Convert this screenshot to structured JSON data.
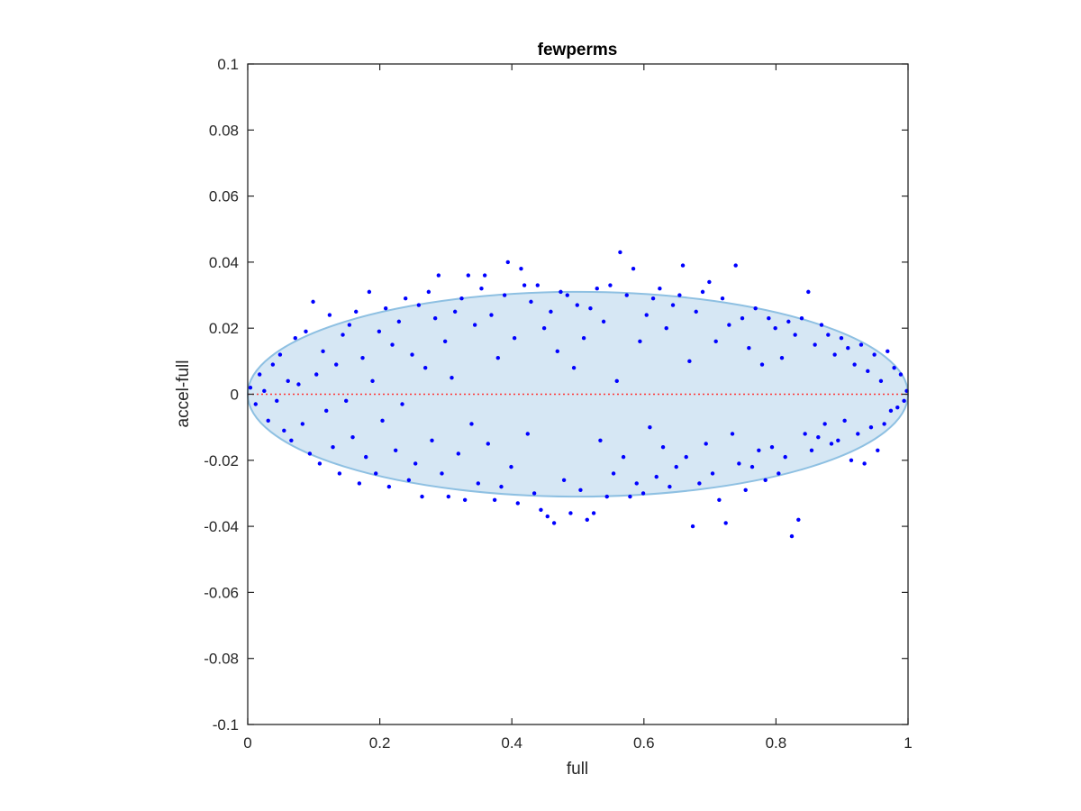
{
  "chart_data": {
    "type": "scatter",
    "title": "fewperms",
    "xlabel": "full",
    "ylabel": "accel-full",
    "xlim": [
      0,
      1
    ],
    "ylim": [
      -0.1,
      0.1
    ],
    "xticks": [
      0,
      0.2,
      0.4,
      0.6,
      0.8,
      1
    ],
    "xtick_labels": [
      "0",
      "0.2",
      "0.4",
      "0.6",
      "0.8",
      "1"
    ],
    "yticks": [
      -0.1,
      -0.08,
      -0.06,
      -0.04,
      -0.02,
      0,
      0.02,
      0.04,
      0.06,
      0.08,
      0.1
    ],
    "ytick_labels": [
      "-0.1",
      "-0.08",
      "-0.06",
      "-0.04",
      "-0.02",
      "0",
      "0.02",
      "0.04",
      "0.06",
      "0.08",
      "0.1"
    ],
    "grid": false,
    "colors": {
      "points": "#0000ff",
      "ellipse_fill": "#d6e7f4",
      "ellipse_edge": "#8ec0e2",
      "reference_line": "#ff3333"
    },
    "reference_line": {
      "y": 0,
      "style": "dotted"
    },
    "ellipse": {
      "cx": 0.5,
      "cy": 0,
      "rx": 0.5,
      "ry": 0.031
    },
    "series": [
      {
        "values": [
          [
            0.004,
            0.002
          ],
          [
            0.012,
            -0.003
          ],
          [
            0.018,
            0.006
          ],
          [
            0.025,
            0.001
          ],
          [
            0.031,
            -0.008
          ],
          [
            0.038,
            0.009
          ],
          [
            0.044,
            -0.002
          ],
          [
            0.049,
            0.012
          ],
          [
            0.055,
            -0.011
          ],
          [
            0.061,
            0.004
          ],
          [
            0.066,
            -0.014
          ],
          [
            0.072,
            0.017
          ],
          [
            0.077,
            0.003
          ],
          [
            0.083,
            -0.009
          ],
          [
            0.088,
            0.019
          ],
          [
            0.094,
            -0.018
          ],
          [
            0.099,
            0.028
          ],
          [
            0.104,
            0.006
          ],
          [
            0.109,
            -0.021
          ],
          [
            0.114,
            0.013
          ],
          [
            0.119,
            -0.005
          ],
          [
            0.124,
            0.024
          ],
          [
            0.129,
            -0.016
          ],
          [
            0.134,
            0.009
          ],
          [
            0.139,
            -0.024
          ],
          [
            0.144,
            0.018
          ],
          [
            0.149,
            -0.002
          ],
          [
            0.154,
            0.021
          ],
          [
            0.159,
            -0.013
          ],
          [
            0.164,
            0.025
          ],
          [
            0.169,
            -0.027
          ],
          [
            0.174,
            0.011
          ],
          [
            0.179,
            -0.019
          ],
          [
            0.184,
            0.031
          ],
          [
            0.189,
            0.004
          ],
          [
            0.194,
            -0.024
          ],
          [
            0.199,
            0.019
          ],
          [
            0.204,
            -0.008
          ],
          [
            0.209,
            0.026
          ],
          [
            0.214,
            -0.028
          ],
          [
            0.219,
            0.015
          ],
          [
            0.224,
            -0.017
          ],
          [
            0.229,
            0.022
          ],
          [
            0.234,
            -0.003
          ],
          [
            0.239,
            0.029
          ],
          [
            0.244,
            -0.026
          ],
          [
            0.249,
            0.012
          ],
          [
            0.254,
            -0.021
          ],
          [
            0.259,
            0.027
          ],
          [
            0.264,
            -0.031
          ],
          [
            0.269,
            0.008
          ],
          [
            0.274,
            0.031
          ],
          [
            0.279,
            -0.014
          ],
          [
            0.284,
            0.023
          ],
          [
            0.289,
            0.036
          ],
          [
            0.294,
            -0.024
          ],
          [
            0.299,
            0.016
          ],
          [
            0.304,
            -0.031
          ],
          [
            0.309,
            0.005
          ],
          [
            0.314,
            0.025
          ],
          [
            0.319,
            -0.018
          ],
          [
            0.324,
            0.029
          ],
          [
            0.329,
            -0.032
          ],
          [
            0.334,
            0.036
          ],
          [
            0.339,
            -0.009
          ],
          [
            0.344,
            0.021
          ],
          [
            0.349,
            -0.027
          ],
          [
            0.354,
            0.032
          ],
          [
            0.359,
            0.036
          ],
          [
            0.364,
            -0.015
          ],
          [
            0.369,
            0.024
          ],
          [
            0.374,
            -0.032
          ],
          [
            0.379,
            0.011
          ],
          [
            0.384,
            -0.028
          ],
          [
            0.389,
            0.03
          ],
          [
            0.394,
            0.04
          ],
          [
            0.399,
            -0.022
          ],
          [
            0.404,
            0.017
          ],
          [
            0.409,
            -0.033
          ],
          [
            0.414,
            0.038
          ],
          [
            0.419,
            0.033
          ],
          [
            0.424,
            -0.012
          ],
          [
            0.429,
            0.028
          ],
          [
            0.434,
            -0.03
          ],
          [
            0.439,
            0.033
          ],
          [
            0.444,
            -0.035
          ],
          [
            0.449,
            0.02
          ],
          [
            0.454,
            -0.037
          ],
          [
            0.459,
            0.025
          ],
          [
            0.464,
            -0.039
          ],
          [
            0.469,
            0.013
          ],
          [
            0.474,
            0.031
          ],
          [
            0.479,
            -0.026
          ],
          [
            0.484,
            0.03
          ],
          [
            0.489,
            -0.036
          ],
          [
            0.494,
            0.008
          ],
          [
            0.499,
            0.027
          ],
          [
            0.504,
            -0.029
          ],
          [
            0.509,
            0.017
          ],
          [
            0.514,
            -0.038
          ],
          [
            0.519,
            0.026
          ],
          [
            0.524,
            -0.036
          ],
          [
            0.529,
            0.032
          ],
          [
            0.534,
            -0.014
          ],
          [
            0.539,
            0.022
          ],
          [
            0.544,
            -0.031
          ],
          [
            0.549,
            0.033
          ],
          [
            0.554,
            -0.024
          ],
          [
            0.559,
            0.004
          ],
          [
            0.564,
            0.043
          ],
          [
            0.569,
            -0.019
          ],
          [
            0.574,
            0.03
          ],
          [
            0.579,
            -0.031
          ],
          [
            0.584,
            0.038
          ],
          [
            0.589,
            -0.027
          ],
          [
            0.594,
            0.016
          ],
          [
            0.599,
            -0.03
          ],
          [
            0.604,
            0.024
          ],
          [
            0.609,
            -0.01
          ],
          [
            0.614,
            0.029
          ],
          [
            0.619,
            -0.025
          ],
          [
            0.624,
            0.032
          ],
          [
            0.629,
            -0.016
          ],
          [
            0.634,
            0.02
          ],
          [
            0.639,
            -0.028
          ],
          [
            0.644,
            0.027
          ],
          [
            0.649,
            -0.022
          ],
          [
            0.654,
            0.03
          ],
          [
            0.659,
            0.039
          ],
          [
            0.664,
            -0.019
          ],
          [
            0.669,
            0.01
          ],
          [
            0.674,
            -0.04
          ],
          [
            0.679,
            0.025
          ],
          [
            0.684,
            -0.027
          ],
          [
            0.689,
            0.031
          ],
          [
            0.694,
            -0.015
          ],
          [
            0.699,
            0.034
          ],
          [
            0.704,
            -0.024
          ],
          [
            0.709,
            0.016
          ],
          [
            0.714,
            -0.032
          ],
          [
            0.719,
            0.029
          ],
          [
            0.724,
            -0.039
          ],
          [
            0.729,
            0.021
          ],
          [
            0.734,
            -0.012
          ],
          [
            0.739,
            0.039
          ],
          [
            0.744,
            -0.021
          ],
          [
            0.749,
            0.023
          ],
          [
            0.754,
            -0.029
          ],
          [
            0.759,
            0.014
          ],
          [
            0.764,
            -0.022
          ],
          [
            0.769,
            0.026
          ],
          [
            0.774,
            -0.017
          ],
          [
            0.779,
            0.009
          ],
          [
            0.784,
            -0.026
          ],
          [
            0.789,
            0.023
          ],
          [
            0.794,
            -0.016
          ],
          [
            0.799,
            0.02
          ],
          [
            0.804,
            -0.024
          ],
          [
            0.809,
            0.011
          ],
          [
            0.814,
            -0.019
          ],
          [
            0.819,
            0.022
          ],
          [
            0.824,
            -0.043
          ],
          [
            0.829,
            0.018
          ],
          [
            0.834,
            -0.038
          ],
          [
            0.839,
            0.023
          ],
          [
            0.844,
            -0.012
          ],
          [
            0.849,
            0.031
          ],
          [
            0.854,
            -0.017
          ],
          [
            0.859,
            0.015
          ],
          [
            0.864,
            -0.013
          ],
          [
            0.869,
            0.021
          ],
          [
            0.874,
            -0.009
          ],
          [
            0.879,
            0.018
          ],
          [
            0.884,
            -0.015
          ],
          [
            0.889,
            0.012
          ],
          [
            0.894,
            -0.014
          ],
          [
            0.899,
            0.017
          ],
          [
            0.904,
            -0.008
          ],
          [
            0.909,
            0.014
          ],
          [
            0.914,
            -0.02
          ],
          [
            0.919,
            0.009
          ],
          [
            0.924,
            -0.012
          ],
          [
            0.929,
            0.015
          ],
          [
            0.934,
            -0.021
          ],
          [
            0.939,
            0.007
          ],
          [
            0.944,
            -0.01
          ],
          [
            0.949,
            0.012
          ],
          [
            0.954,
            -0.017
          ],
          [
            0.959,
            0.004
          ],
          [
            0.964,
            -0.009
          ],
          [
            0.969,
            0.013
          ],
          [
            0.974,
            -0.005
          ],
          [
            0.979,
            0.008
          ],
          [
            0.984,
            -0.004
          ],
          [
            0.989,
            0.006
          ],
          [
            0.994,
            -0.002
          ],
          [
            0.998,
            0.001
          ]
        ]
      }
    ]
  }
}
